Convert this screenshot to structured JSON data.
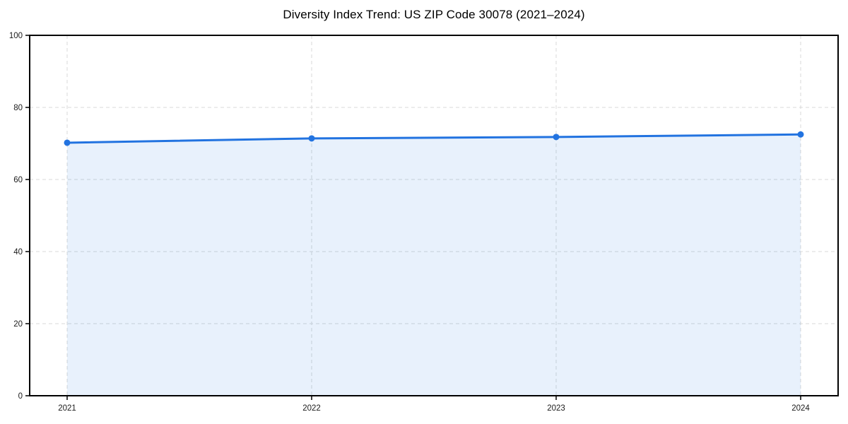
{
  "title": "Diversity Index Trend: US ZIP Code 30078 (2021–2024)",
  "chart_data": {
    "type": "area",
    "title": "Diversity Index Trend: US ZIP Code 30078 (2021–2024)",
    "categories": [
      "2021",
      "2022",
      "2023",
      "2024"
    ],
    "series": [
      {
        "name": "Diversity Index",
        "values": [
          70.2,
          71.4,
          71.8,
          72.5
        ]
      }
    ],
    "xlabel": "",
    "ylabel": "",
    "ylim": [
      0,
      100
    ],
    "yticks": [
      0,
      20,
      40,
      60,
      80,
      100
    ],
    "grid": true,
    "grid_style": "dashed",
    "legend": "none",
    "colors": {
      "line": "#2273e0",
      "marker": "#2273e0",
      "fill": "rgba(34,115,224,0.10)",
      "grid": "#d9d9d9",
      "spine": "#000000",
      "background": "#ffffff",
      "tick_label": "#1a1a1a",
      "title": "#000000"
    }
  }
}
